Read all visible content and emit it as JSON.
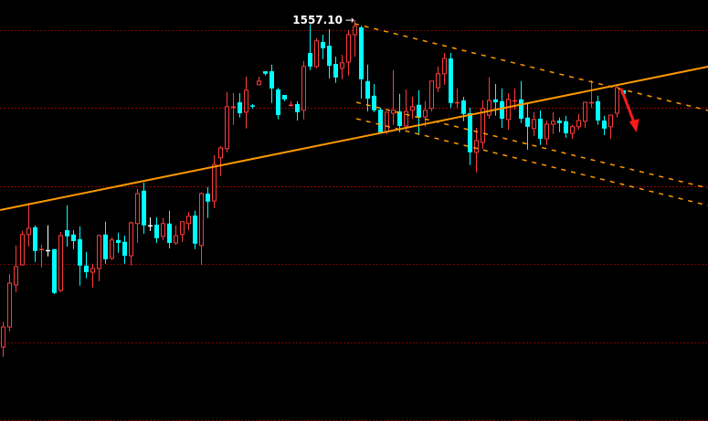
{
  "chart_data": {
    "type": "candlestick",
    "title": "",
    "xlabel": "",
    "ylabel": "",
    "grid": true,
    "colors": {
      "background": "#000000",
      "up": "#ff3b3b",
      "down": "#00ffff",
      "doji_white": "#ffffff",
      "gridline": "#a00000",
      "trendline": "#ff9900",
      "channel": "#ff9900",
      "arrow": "#ff1a1a"
    },
    "high_label": {
      "text": "1557.10",
      "arrow": "→",
      "bar_index": 55,
      "price": 1557.1
    },
    "horizontal_levels": [
      1554.35,
      1533.1,
      1511.6,
      1490.35,
      1468.85,
      1447.6
    ],
    "white_doji_indices": [
      7,
      23
    ],
    "candles_ohlc": [
      [
        1467.6,
        1474.4,
        1464.9,
        1473.1
      ],
      [
        1473.1,
        1487.6,
        1471.9,
        1485.1
      ],
      [
        1484.6,
        1495.4,
        1482.6,
        1489.6
      ],
      [
        1490.1,
        1499.4,
        1489.9,
        1498.4
      ],
      [
        1498.4,
        1507.1,
        1495.1,
        1500.1
      ],
      [
        1500.4,
        1500.9,
        1490.9,
        1493.9
      ],
      [
        1494.4,
        1495.6,
        1489.4,
        1494.4
      ],
      [
        1494.1,
        1500.9,
        1492.4,
        1494.1
      ],
      [
        1494.4,
        1494.4,
        1482.1,
        1482.4
      ],
      [
        1483.1,
        1499.1,
        1482.6,
        1498.1
      ],
      [
        1499.6,
        1506.4,
        1495.1,
        1497.9
      ],
      [
        1498.4,
        1499.6,
        1494.4,
        1496.6
      ],
      [
        1497.1,
        1500.6,
        1484.4,
        1489.9
      ],
      [
        1489.9,
        1493.6,
        1486.4,
        1488.1
      ],
      [
        1488.1,
        1490.4,
        1483.9,
        1489.1
      ],
      [
        1489.1,
        1498.4,
        1485.6,
        1498.1
      ],
      [
        1498.4,
        1501.9,
        1490.4,
        1491.6
      ],
      [
        1491.9,
        1497.6,
        1491.4,
        1496.9
      ],
      [
        1496.9,
        1498.9,
        1493.4,
        1496.1
      ],
      [
        1496.4,
        1498.1,
        1490.4,
        1492.6
      ],
      [
        1492.6,
        1501.9,
        1489.9,
        1501.6
      ],
      [
        1501.4,
        1510.9,
        1496.1,
        1509.6
      ],
      [
        1510.4,
        1512.6,
        1498.6,
        1500.9
      ],
      [
        1500.9,
        1503.1,
        1499.4,
        1500.9
      ],
      [
        1501.1,
        1503.1,
        1496.1,
        1497.4
      ],
      [
        1497.9,
        1502.9,
        1496.9,
        1501.4
      ],
      [
        1501.4,
        1504.9,
        1494.6,
        1496.1
      ],
      [
        1496.1,
        1500.9,
        1495.6,
        1498.1
      ],
      [
        1498.4,
        1501.9,
        1496.4,
        1501.9
      ],
      [
        1501.4,
        1504.6,
        1499.6,
        1503.4
      ],
      [
        1503.6,
        1504.9,
        1494.4,
        1495.9
      ],
      [
        1495.4,
        1509.9,
        1490.1,
        1509.6
      ],
      [
        1509.6,
        1511.4,
        1502.9,
        1507.4
      ],
      [
        1507.6,
        1520.1,
        1505.6,
        1517.6
      ],
      [
        1519.4,
        1522.6,
        1514.4,
        1522.1
      ],
      [
        1521.9,
        1537.4,
        1520.9,
        1533.4
      ],
      [
        1533.4,
        1537.1,
        1528.4,
        1533.4
      ],
      [
        1534.6,
        1537.1,
        1530.4,
        1531.6
      ],
      [
        1531.9,
        1541.6,
        1527.4,
        1537.9
      ],
      [
        1533.7,
        1534.1,
        1532.9,
        1533.5
      ],
      [
        1539.4,
        1541.6,
        1539.4,
        1540.4
      ],
      [
        1543.1,
        1543.1,
        1541.9,
        1542.4
      ],
      [
        1543.1,
        1544.9,
        1534.4,
        1538.4
      ],
      [
        1538.1,
        1538.6,
        1529.9,
        1531.1
      ],
      [
        1536.6,
        1536.6,
        1534.9,
        1535.4
      ],
      [
        1533.9,
        1534.9,
        1533.4,
        1533.9
      ],
      [
        1534.1,
        1534.9,
        1529.6,
        1531.9
      ],
      [
        1532.4,
        1545.9,
        1529.9,
        1544.4
      ],
      [
        1548.1,
        1555.9,
        1543.4,
        1544.4
      ],
      [
        1544.4,
        1552.1,
        1543.9,
        1551.4
      ],
      [
        1551.1,
        1553.1,
        1546.4,
        1549.4
      ],
      [
        1550.1,
        1554.6,
        1541.1,
        1544.6
      ],
      [
        1545.1,
        1547.1,
        1539.9,
        1541.4
      ],
      [
        1543.9,
        1547.6,
        1540.9,
        1545.4
      ],
      [
        1545.6,
        1554.4,
        1541.9,
        1553.1
      ],
      [
        1553.1,
        1557.1,
        1547.1,
        1555.4
      ],
      [
        1555.1,
        1555.6,
        1535.6,
        1540.9
      ],
      [
        1540.4,
        1544.9,
        1532.1,
        1535.6
      ],
      [
        1536.4,
        1539.6,
        1531.9,
        1532.4
      ],
      [
        1532.6,
        1533.1,
        1526.1,
        1526.4
      ],
      [
        1526.6,
        1531.9,
        1525.9,
        1531.9
      ],
      [
        1531.6,
        1543.4,
        1528.4,
        1532.4
      ],
      [
        1532.1,
        1536.9,
        1526.4,
        1528.1
      ],
      [
        1528.1,
        1538.1,
        1527.1,
        1532.1
      ],
      [
        1532.4,
        1536.1,
        1530.1,
        1533.4
      ],
      [
        1533.9,
        1537.9,
        1525.6,
        1530.4
      ],
      [
        1530.6,
        1534.9,
        1527.9,
        1532.4
      ],
      [
        1532.9,
        1540.4,
        1532.1,
        1540.4
      ],
      [
        1538.6,
        1544.4,
        1537.4,
        1542.4
      ],
      [
        1542.4,
        1548.1,
        1539.4,
        1546.6
      ],
      [
        1546.6,
        1548.1,
        1533.1,
        1534.4
      ],
      [
        1534.6,
        1538.4,
        1533.1,
        1534.6
      ],
      [
        1535.1,
        1536.1,
        1529.4,
        1531.4
      ],
      [
        1531.6,
        1533.1,
        1517.4,
        1520.9
      ],
      [
        1520.9,
        1527.6,
        1515.4,
        1524.1
      ],
      [
        1523.6,
        1535.1,
        1521.9,
        1532.9
      ],
      [
        1531.1,
        1541.4,
        1530.1,
        1535.1
      ],
      [
        1535.4,
        1539.6,
        1530.9,
        1534.6
      ],
      [
        1534.9,
        1538.4,
        1527.6,
        1530.1
      ],
      [
        1529.9,
        1537.1,
        1527.1,
        1535.4
      ],
      [
        1535.1,
        1538.4,
        1532.6,
        1535.1
      ],
      [
        1535.4,
        1540.4,
        1528.9,
        1530.1
      ],
      [
        1530.4,
        1534.4,
        1521.6,
        1527.9
      ],
      [
        1527.4,
        1531.9,
        1525.4,
        1529.9
      ],
      [
        1530.1,
        1532.4,
        1522.9,
        1524.6
      ],
      [
        1524.6,
        1529.6,
        1522.9,
        1528.6
      ],
      [
        1528.6,
        1531.9,
        1525.9,
        1529.4
      ],
      [
        1529.6,
        1530.4,
        1526.4,
        1528.9
      ],
      [
        1529.4,
        1530.9,
        1524.9,
        1526.1
      ],
      [
        1526.1,
        1528.4,
        1524.6,
        1527.9
      ],
      [
        1527.9,
        1531.4,
        1527.1,
        1529.6
      ],
      [
        1529.4,
        1534.6,
        1527.6,
        1534.6
      ],
      [
        1534.6,
        1540.6,
        1533.1,
        1534.6
      ],
      [
        1534.9,
        1536.4,
        1528.4,
        1529.6
      ],
      [
        1529.6,
        1530.9,
        1525.6,
        1527.4
      ],
      [
        1527.9,
        1531.1,
        1524.6,
        1531.1
      ],
      [
        1531.6,
        1539.6,
        1530.4,
        1538.6
      ],
      [
        1537.9,
        1537.9,
        1536.4,
        1536.9
      ]
    ],
    "trendlines": [
      {
        "kind": "solid",
        "points": [
          [
            -0.4,
            1505.1
          ],
          [
            110.3,
            1544.35
          ]
        ]
      },
      {
        "kind": "dashed",
        "points": [
          [
            55.0,
            1556.1
          ],
          [
            110.3,
            1532.35
          ]
        ]
      },
      {
        "kind": "dashed",
        "points": [
          [
            55.3,
            1534.6
          ],
          [
            110.3,
            1511.1
          ]
        ]
      },
      {
        "kind": "dashed",
        "points": [
          [
            55.3,
            1530.1
          ],
          [
            110.3,
            1506.35
          ]
        ]
      }
    ],
    "arrow_annotation": {
      "direction": "down",
      "from": [
        96.7,
        1538.35
      ],
      "to": [
        99.1,
        1526.35
      ]
    }
  }
}
